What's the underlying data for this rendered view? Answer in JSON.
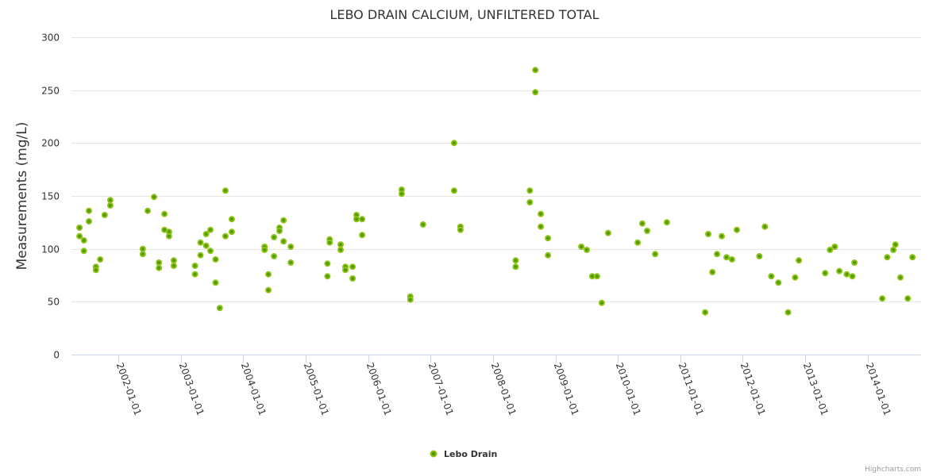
{
  "chart_data": {
    "type": "scatter",
    "title": "LEBO DRAIN CALCIUM, UNFILTERED TOTAL",
    "xlabel": "",
    "ylabel": "Measurements (mg/L)",
    "ylim": [
      0,
      300
    ],
    "xlim": [
      "2001-04-01",
      "2014-11-10"
    ],
    "yticks": [
      0,
      50,
      100,
      150,
      200,
      250,
      300
    ],
    "xticks": [
      "2002-01-01",
      "2003-01-01",
      "2004-01-01",
      "2005-01-01",
      "2006-01-01",
      "2007-01-01",
      "2008-01-01",
      "2009-01-01",
      "2010-01-01",
      "2011-01-01",
      "2012-01-01",
      "2013-01-01",
      "2014-01-01"
    ],
    "grid": true,
    "legend": {
      "position": "bottom-center",
      "entries": [
        "Lebo Drain"
      ]
    },
    "credit": "Highcharts.com",
    "colors": {
      "point_fill": "#509a00",
      "point_stroke": "#90c31a"
    },
    "series": [
      {
        "name": "Lebo Drain",
        "points": [
          [
            "2001-05-18",
            120
          ],
          [
            "2001-05-18",
            112
          ],
          [
            "2001-06-13",
            108
          ],
          [
            "2001-06-13",
            98
          ],
          [
            "2001-07-12",
            136
          ],
          [
            "2001-07-12",
            126
          ],
          [
            "2001-08-22",
            83
          ],
          [
            "2001-08-22",
            80
          ],
          [
            "2001-09-16",
            90
          ],
          [
            "2001-10-12",
            132
          ],
          [
            "2001-11-14",
            146
          ],
          [
            "2001-11-14",
            141
          ],
          [
            "2002-05-23",
            100
          ],
          [
            "2002-05-23",
            95
          ],
          [
            "2002-06-21",
            136
          ],
          [
            "2002-07-28",
            149
          ],
          [
            "2002-08-26",
            87
          ],
          [
            "2002-08-26",
            82
          ],
          [
            "2002-09-27",
            133
          ],
          [
            "2002-09-27",
            118
          ],
          [
            "2002-10-24",
            116
          ],
          [
            "2002-10-24",
            112
          ],
          [
            "2002-11-21",
            89
          ],
          [
            "2002-11-21",
            84
          ],
          [
            "2003-03-25",
            84
          ],
          [
            "2003-03-25",
            76
          ],
          [
            "2003-04-26",
            106
          ],
          [
            "2003-04-26",
            94
          ],
          [
            "2003-05-29",
            114
          ],
          [
            "2003-05-29",
            103
          ],
          [
            "2003-06-23",
            118
          ],
          [
            "2003-06-23",
            98
          ],
          [
            "2003-07-23",
            90
          ],
          [
            "2003-07-23",
            68
          ],
          [
            "2003-08-17",
            44
          ],
          [
            "2003-09-19",
            155
          ],
          [
            "2003-09-19",
            112
          ],
          [
            "2003-10-26",
            128
          ],
          [
            "2003-10-26",
            116
          ],
          [
            "2004-05-05",
            102
          ],
          [
            "2004-05-05",
            99
          ],
          [
            "2004-05-27",
            76
          ],
          [
            "2004-05-27",
            61
          ],
          [
            "2004-06-29",
            111
          ],
          [
            "2004-06-29",
            93
          ],
          [
            "2004-07-31",
            120
          ],
          [
            "2004-07-31",
            117
          ],
          [
            "2004-08-24",
            127
          ],
          [
            "2004-08-24",
            107
          ],
          [
            "2004-10-05",
            102
          ],
          [
            "2004-10-05",
            87
          ],
          [
            "2005-05-08",
            86
          ],
          [
            "2005-05-08",
            74
          ],
          [
            "2005-05-21",
            109
          ],
          [
            "2005-05-21",
            106
          ],
          [
            "2005-07-24",
            104
          ],
          [
            "2005-07-24",
            99
          ],
          [
            "2005-08-21",
            83
          ],
          [
            "2005-08-21",
            80
          ],
          [
            "2005-10-02",
            83
          ],
          [
            "2005-10-02",
            72
          ],
          [
            "2005-10-25",
            132
          ],
          [
            "2005-10-25",
            128
          ],
          [
            "2005-11-27",
            128
          ],
          [
            "2005-11-27",
            113
          ],
          [
            "2006-07-16",
            156
          ],
          [
            "2006-07-16",
            152
          ],
          [
            "2006-09-05",
            55
          ],
          [
            "2006-09-05",
            52
          ],
          [
            "2006-11-18",
            123
          ],
          [
            "2007-05-19",
            200
          ],
          [
            "2007-05-19",
            155
          ],
          [
            "2007-06-25",
            121
          ],
          [
            "2007-06-25",
            118
          ],
          [
            "2008-05-13",
            89
          ],
          [
            "2008-05-13",
            83
          ],
          [
            "2008-08-04",
            155
          ],
          [
            "2008-08-04",
            144
          ],
          [
            "2008-09-05",
            269
          ],
          [
            "2008-09-05",
            248
          ],
          [
            "2008-10-07",
            133
          ],
          [
            "2008-10-07",
            121
          ],
          [
            "2008-11-18",
            110
          ],
          [
            "2008-11-18",
            94
          ],
          [
            "2009-06-01",
            102
          ],
          [
            "2009-07-03",
            99
          ],
          [
            "2009-08-04",
            74
          ],
          [
            "2009-09-01",
            74
          ],
          [
            "2009-09-29",
            49
          ],
          [
            "2009-11-05",
            115
          ],
          [
            "2010-04-27",
            106
          ],
          [
            "2010-05-24",
            124
          ],
          [
            "2010-06-21",
            117
          ],
          [
            "2010-08-07",
            95
          ],
          [
            "2010-10-15",
            125
          ],
          [
            "2011-05-27",
            40
          ],
          [
            "2011-06-14",
            114
          ],
          [
            "2011-07-08",
            78
          ],
          [
            "2011-08-04",
            95
          ],
          [
            "2011-09-01",
            112
          ],
          [
            "2011-09-29",
            92
          ],
          [
            "2011-10-31",
            90
          ],
          [
            "2011-11-28",
            118
          ],
          [
            "2012-04-08",
            93
          ],
          [
            "2012-05-10",
            121
          ],
          [
            "2012-06-17",
            74
          ],
          [
            "2012-07-28",
            68
          ],
          [
            "2012-09-23",
            40
          ],
          [
            "2012-11-03",
            73
          ],
          [
            "2012-11-25",
            89
          ],
          [
            "2013-04-28",
            77
          ],
          [
            "2013-05-26",
            99
          ],
          [
            "2013-06-23",
            102
          ],
          [
            "2013-07-20",
            79
          ],
          [
            "2013-09-01",
            76
          ],
          [
            "2013-10-04",
            74
          ],
          [
            "2013-10-16",
            87
          ],
          [
            "2014-03-28",
            53
          ],
          [
            "2014-04-26",
            92
          ],
          [
            "2014-06-01",
            99
          ],
          [
            "2014-06-13",
            104
          ],
          [
            "2014-07-12",
            73
          ],
          [
            "2014-08-24",
            53
          ],
          [
            "2014-09-21",
            92
          ]
        ]
      }
    ]
  }
}
